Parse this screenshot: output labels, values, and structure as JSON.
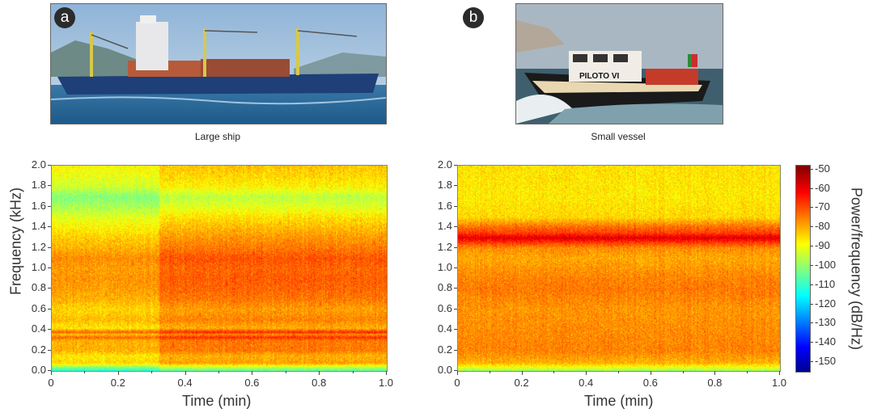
{
  "panels": [
    {
      "badge": "a",
      "caption": "Large ship"
    },
    {
      "badge": "b",
      "caption": "Small vessel"
    }
  ],
  "photo_text": {
    "boat_name": "PILOTO VI"
  },
  "colorbar": {
    "label": "Power/frequency (dB/Hz)",
    "ticks": [
      -50,
      -60,
      -70,
      -80,
      -90,
      -100,
      -110,
      -120,
      -130,
      -140,
      -150
    ],
    "range": [
      -155,
      -48
    ],
    "colormap": "jet"
  },
  "chart_data": [
    {
      "type": "heatmap",
      "title": "Large ship",
      "xlabel": "Time (min)",
      "ylabel": "Frequency (kHz)",
      "xlim": [
        0,
        1.0
      ],
      "ylim": [
        0,
        2.0
      ],
      "xticks": [
        "0",
        "0.2",
        "0.4",
        "0.6",
        "0.8",
        "1.0"
      ],
      "yticks": [
        "0.0",
        "0.2",
        "0.4",
        "0.6",
        "0.8",
        "1.0",
        "1.2",
        "1.4",
        "1.6",
        "1.8",
        "2.0"
      ],
      "freq_profile_khz": [
        0,
        0.03,
        0.08,
        0.15,
        0.2,
        0.3,
        0.33,
        0.36,
        0.38,
        0.42,
        0.5,
        0.6,
        0.7,
        0.8,
        0.9,
        1.0,
        1.1,
        1.2,
        1.3,
        1.4,
        1.5,
        1.6,
        1.7,
        1.8,
        1.9,
        2.0
      ],
      "freq_profile_db": [
        -108,
        -100,
        -80,
        -82,
        -76,
        -76,
        -68,
        -78,
        -67,
        -82,
        -77,
        -80,
        -76,
        -74,
        -73,
        -74,
        -72,
        -76,
        -79,
        -83,
        -87,
        -93,
        -97,
        -89,
        -86,
        -84
      ],
      "time_segments": [
        {
          "from": 0,
          "to": 0.32,
          "offset_db": -4
        },
        {
          "from": 0.32,
          "to": 1.0,
          "offset_db": 2
        }
      ]
    },
    {
      "type": "heatmap",
      "title": "Small vessel",
      "xlabel": "Time (min)",
      "ylabel": "",
      "xlim": [
        0,
        1.0
      ],
      "ylim": [
        0,
        2.0
      ],
      "xticks": [
        "0",
        "0.2",
        "0.4",
        "0.6",
        "0.8",
        "1.0"
      ],
      "yticks": [
        "0.0",
        "0.2",
        "0.4",
        "0.6",
        "0.8",
        "1.0",
        "1.2",
        "1.4",
        "1.6",
        "1.8",
        "2.0"
      ],
      "freq_profile_khz": [
        0,
        0.03,
        0.08,
        0.2,
        0.4,
        0.6,
        0.8,
        0.9,
        1.0,
        1.1,
        1.2,
        1.25,
        1.3,
        1.35,
        1.4,
        1.45,
        1.5,
        1.7,
        2.0
      ],
      "freq_profile_db": [
        -100,
        -92,
        -80,
        -75,
        -76,
        -77,
        -74,
        -75,
        -77,
        -79,
        -76,
        -68,
        -58,
        -68,
        -72,
        -78,
        -84,
        -86,
        -85
      ],
      "time_segments": [
        {
          "from": 0,
          "to": 1.0,
          "offset_db": 0
        }
      ]
    }
  ]
}
